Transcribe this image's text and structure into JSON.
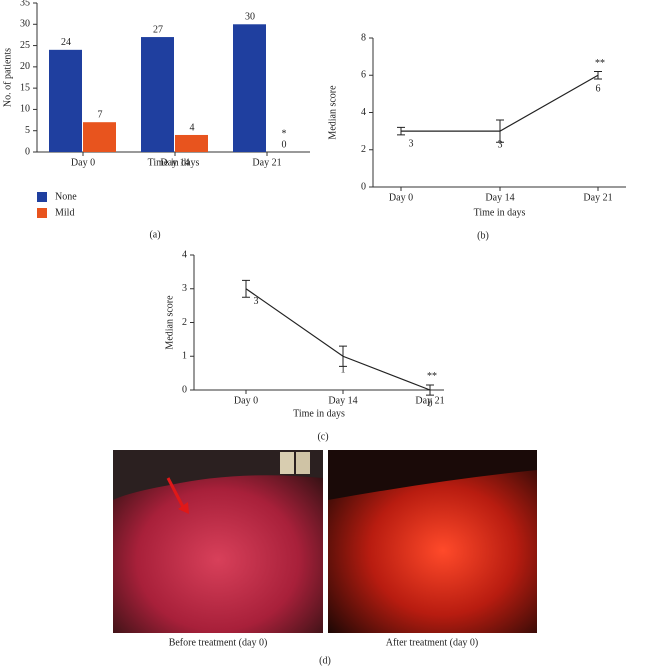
{
  "chart_data": [
    {
      "type": "bar",
      "panel_label": "(a)",
      "ylabel": "No. of patients",
      "xlabel": "Time in days",
      "categories": [
        "Day 0",
        "Day 14",
        "Day 21"
      ],
      "series": [
        {
          "name": "None",
          "color": "#1f3f9f",
          "values": [
            24,
            27,
            30
          ]
        },
        {
          "name": "Mild",
          "color": "#e8541e",
          "values": [
            7,
            4,
            0
          ]
        }
      ],
      "annotation": "*",
      "ylim": [
        0,
        35
      ],
      "yticks": [
        0,
        5,
        10,
        15,
        20,
        25,
        30,
        35
      ],
      "legend": "bottom-left"
    },
    {
      "type": "line",
      "panel_label": "(b)",
      "ylabel": "Median score",
      "xlabel": "Time in days",
      "categories": [
        "Day 0",
        "Day 14",
        "Day 21"
      ],
      "values": [
        3,
        3,
        6
      ],
      "errors": [
        0.2,
        0.6,
        0.2
      ],
      "color": "#222222",
      "annotation": "**",
      "ylim": [
        0,
        8
      ],
      "yticks": [
        0,
        2,
        4,
        6,
        8
      ]
    },
    {
      "type": "line",
      "panel_label": "(c)",
      "ylabel": "Median score",
      "xlabel": "Time in days",
      "categories": [
        "Day 0",
        "Day 14",
        "Day 21"
      ],
      "values": [
        3,
        1,
        0
      ],
      "errors": [
        0.25,
        0.3,
        0.15
      ],
      "color": "#222222",
      "annotation": "**",
      "ylim": [
        0,
        4
      ],
      "yticks": [
        0,
        1,
        2,
        3,
        4
      ]
    }
  ],
  "photos": {
    "panel_label": "(d)",
    "captions": [
      "Before treatment (day 0)",
      "After treatment (day 0)"
    ]
  }
}
